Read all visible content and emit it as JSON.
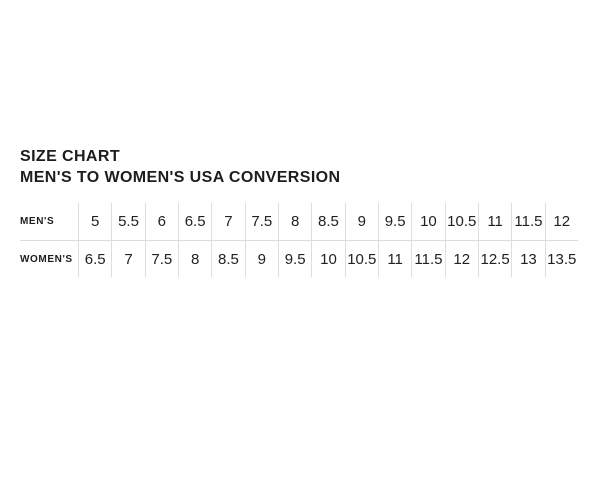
{
  "header": {
    "title": "SIZE CHART",
    "subtitle": "MEN'S TO WOMEN'S USA CONVERSION"
  },
  "chart_data": {
    "type": "table",
    "title": "SIZE CHART",
    "subtitle": "MEN'S TO WOMEN'S USA CONVERSION",
    "rows": [
      {
        "label": "MEN'S",
        "values": [
          "5",
          "5.5",
          "6",
          "6.5",
          "7",
          "7.5",
          "8",
          "8.5",
          "9",
          "9.5",
          "10",
          "10.5",
          "11",
          "11.5",
          "12"
        ]
      },
      {
        "label": "WOMEN'S",
        "values": [
          "6.5",
          "7",
          "7.5",
          "8",
          "8.5",
          "9",
          "9.5",
          "10",
          "10.5",
          "11",
          "11.5",
          "12",
          "12.5",
          "13",
          "13.5"
        ]
      }
    ],
    "layout": {
      "grid": "light vertical separators between columns, single horizontal divider between rows, no outer border"
    }
  },
  "colors": {
    "background": "#ffffff",
    "text": "#1d1d1d",
    "grid_line": "#dcdcdc"
  }
}
